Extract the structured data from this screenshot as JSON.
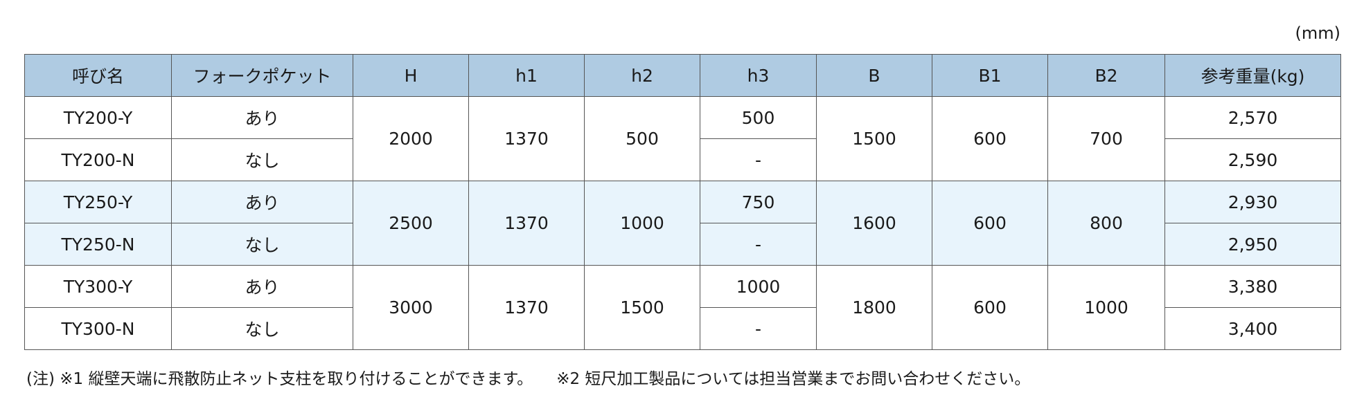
{
  "unit": "(mm)",
  "columns": [
    "呼び名",
    "フォークポケット",
    "H",
    "h1",
    "h2",
    "h3",
    "B",
    "B1",
    "B2",
    "参考重量(kg)"
  ],
  "groups": [
    {
      "H": "2000",
      "h1": "1370",
      "h2": "500",
      "B": "1500",
      "B1": "600",
      "B2": "700",
      "rows": [
        {
          "name": "TY200-Y",
          "fork": "あり",
          "h3": "500",
          "weight": "2,570"
        },
        {
          "name": "TY200-N",
          "fork": "なし",
          "h3": "-",
          "weight": "2,590"
        }
      ]
    },
    {
      "H": "2500",
      "h1": "1370",
      "h2": "1000",
      "B": "1600",
      "B1": "600",
      "B2": "800",
      "rows": [
        {
          "name": "TY250-Y",
          "fork": "あり",
          "h3": "750",
          "weight": "2,930"
        },
        {
          "name": "TY250-N",
          "fork": "なし",
          "h3": "-",
          "weight": "2,950"
        }
      ]
    },
    {
      "H": "3000",
      "h1": "1370",
      "h2": "1500",
      "B": "1800",
      "B1": "600",
      "B2": "1000",
      "rows": [
        {
          "name": "TY300-Y",
          "fork": "あり",
          "h3": "1000",
          "weight": "3,380"
        },
        {
          "name": "TY300-N",
          "fork": "なし",
          "h3": "-",
          "weight": "3,400"
        }
      ]
    }
  ],
  "notes": {
    "note1": "(注) ※1 縦壁天端に飛散防止ネット支柱を取り付けることができます。",
    "note2": "※2 短尺加工製品については担当営業までお問い合わせください。"
  },
  "colors": {
    "header": "#afcbe2",
    "alt_row": "#e8f4fc",
    "border": "#555555"
  }
}
